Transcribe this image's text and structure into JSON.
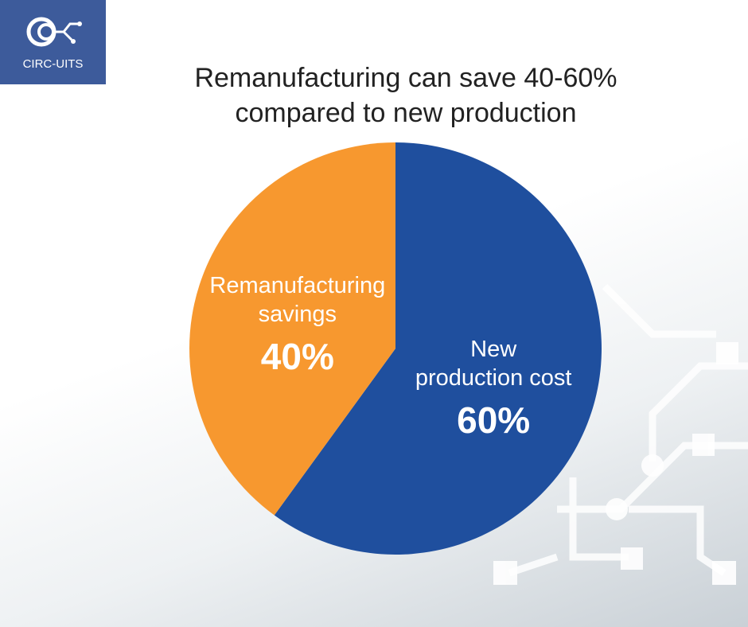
{
  "logo": {
    "text": "CIRC-UITS"
  },
  "chart_data": {
    "type": "pie",
    "title": "Remanufacturing can save 40-60% compared to new production",
    "categories": [
      "New production cost",
      "Remanufacturing savings"
    ],
    "values": [
      60,
      40
    ],
    "value_labels": [
      "60%",
      "40%"
    ],
    "colors": [
      "#1f4f9e",
      "#f7982f"
    ]
  }
}
